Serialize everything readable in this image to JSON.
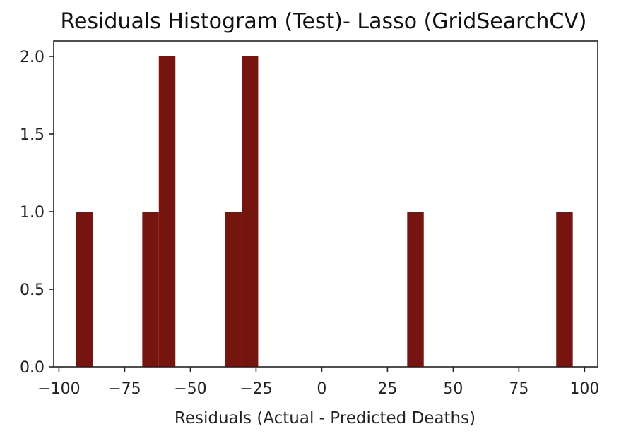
{
  "chart_data": {
    "type": "bar",
    "title": "Residuals Histogram (Test)- Lasso (GridSearchCV)",
    "xlabel": "Residuals (Actual - Predicted Deaths)",
    "ylabel": "",
    "xlim": [
      -102,
      105
    ],
    "ylim": [
      0,
      2.1
    ],
    "bar_color": "#76150F",
    "bin_width": 6.3,
    "bins": [
      {
        "x0": -93.5,
        "count": 1
      },
      {
        "x0": -68.3,
        "count": 1
      },
      {
        "x0": -62.0,
        "count": 2
      },
      {
        "x0": -36.8,
        "count": 1
      },
      {
        "x0": -30.5,
        "count": 2
      },
      {
        "x0": 32.5,
        "count": 1
      },
      {
        "x0": 89.2,
        "count": 1
      }
    ],
    "x_ticks": [
      -100,
      -75,
      -50,
      -25,
      0,
      25,
      50,
      75,
      100
    ],
    "x_tick_labels": [
      "−100",
      "−75",
      "−50",
      "−25",
      "0",
      "25",
      "50",
      "75",
      "100"
    ],
    "y_ticks": [
      0,
      0.5,
      1.0,
      1.5,
      2.0
    ],
    "y_tick_labels": [
      "0.0",
      "0.5",
      "1.0",
      "1.5",
      "2.0"
    ],
    "grid": false,
    "legend": "none"
  }
}
